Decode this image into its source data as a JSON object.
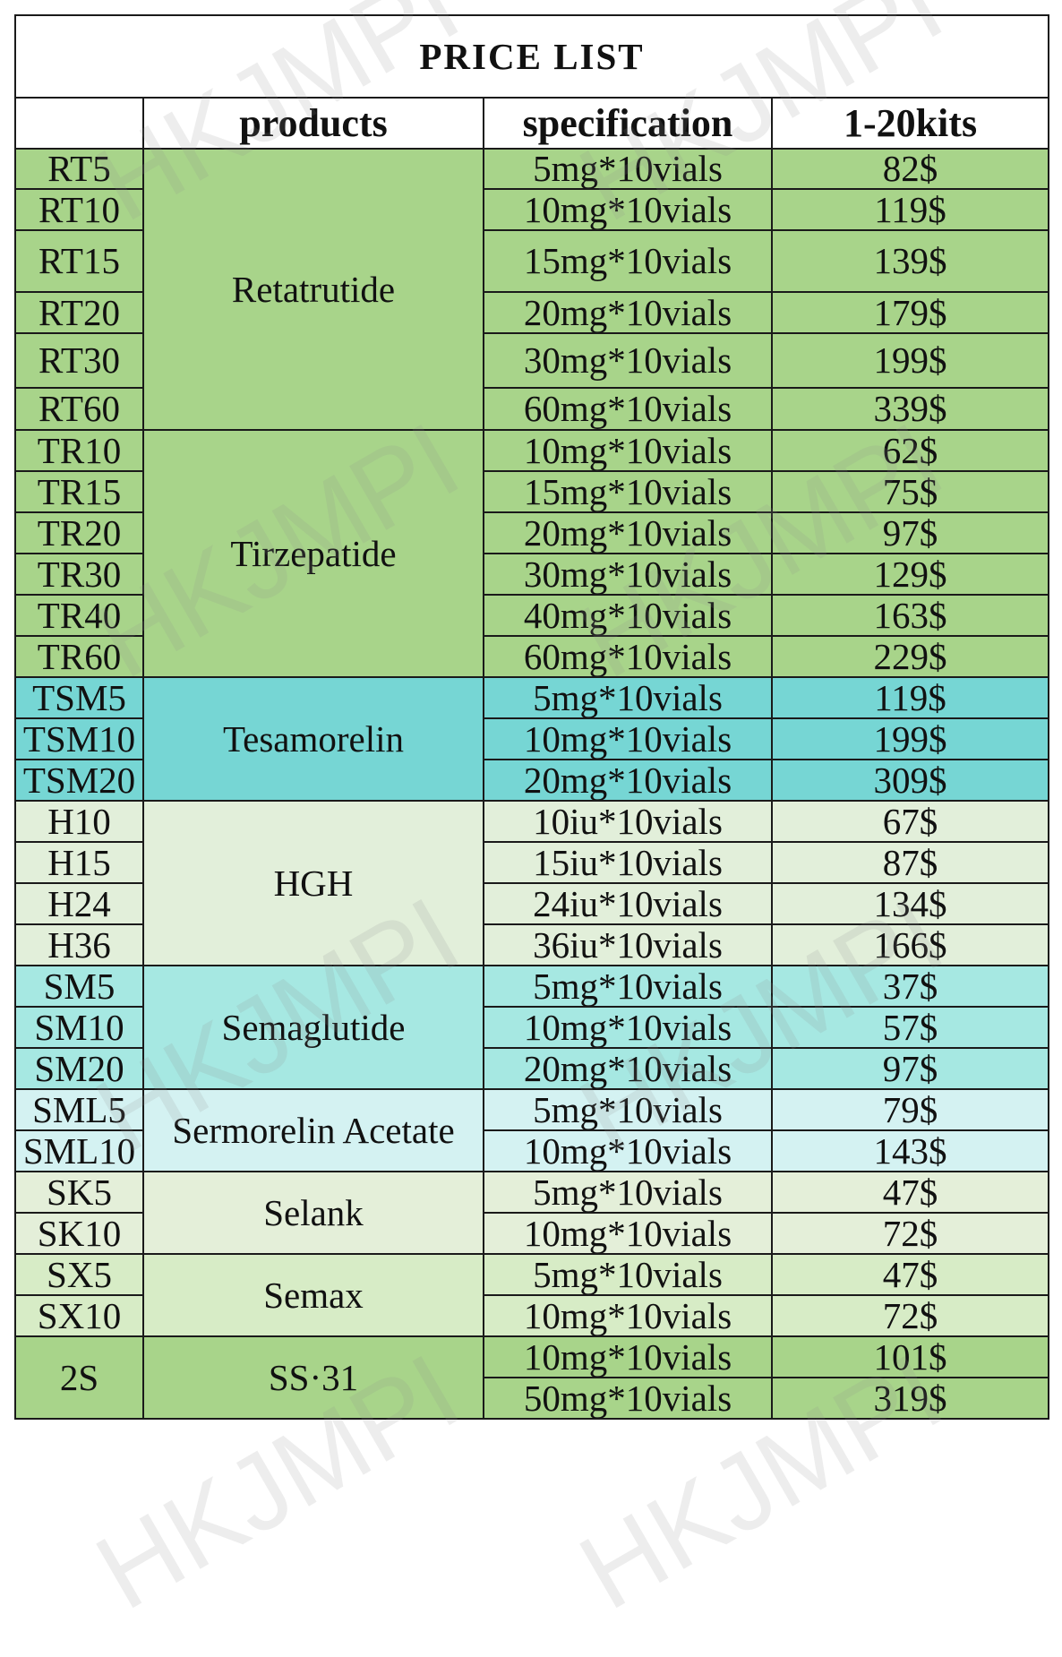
{
  "title": "PRICE  LIST",
  "columns": [
    "",
    "products",
    "specification",
    "1-20kits"
  ],
  "groups": [
    {
      "product": "Retatrutide",
      "color": "#a8d48a",
      "rows": [
        {
          "code": "RT5",
          "spec": "5mg*10vials",
          "price": "82$"
        },
        {
          "code": "RT10",
          "spec": "10mg*10vials",
          "price": "119$"
        },
        {
          "code": "RT15",
          "spec": "15mg*10vials",
          "price": "139$"
        },
        {
          "code": "RT20",
          "spec": "20mg*10vials",
          "price": "179$"
        },
        {
          "code": "RT30",
          "spec": "30mg*10vials",
          "price": "199$"
        },
        {
          "code": "RT60",
          "spec": "60mg*10vials",
          "price": "339$"
        }
      ]
    },
    {
      "product": "Tirzepatide",
      "color": "#a8d48a",
      "rows": [
        {
          "code": "TR10",
          "spec": "10mg*10vials",
          "price": "62$"
        },
        {
          "code": "TR15",
          "spec": "15mg*10vials",
          "price": "75$"
        },
        {
          "code": "TR20",
          "spec": "20mg*10vials",
          "price": "97$"
        },
        {
          "code": "TR30",
          "spec": "30mg*10vials",
          "price": "129$"
        },
        {
          "code": "TR40",
          "spec": "40mg*10vials",
          "price": "163$"
        },
        {
          "code": "TR60",
          "spec": "60mg*10vials",
          "price": "229$"
        }
      ]
    },
    {
      "product": "Tesamorelin",
      "color": "#76d6d4",
      "rows": [
        {
          "code": "TSM5",
          "spec": "5mg*10vials",
          "price": "119$"
        },
        {
          "code": "TSM10",
          "spec": "10mg*10vials",
          "price": "199$"
        },
        {
          "code": "TSM20",
          "spec": "20mg*10vials",
          "price": "309$"
        }
      ]
    },
    {
      "product": "HGH",
      "color": "#e2efda",
      "rows": [
        {
          "code": "H10",
          "spec": "10iu*10vials",
          "price": "67$"
        },
        {
          "code": "H15",
          "spec": "15iu*10vials",
          "price": "87$"
        },
        {
          "code": "H24",
          "spec": "24iu*10vials",
          "price": "134$"
        },
        {
          "code": "H36",
          "spec": "36iu*10vials",
          "price": "166$"
        }
      ]
    },
    {
      "product": "Semaglutide",
      "color": "#a6e8e2",
      "rows": [
        {
          "code": "SM5",
          "spec": "5mg*10vials",
          "price": "37$"
        },
        {
          "code": "SM10",
          "spec": "10mg*10vials",
          "price": "57$"
        },
        {
          "code": "SM20",
          "spec": "20mg*10vials",
          "price": "97$"
        }
      ]
    },
    {
      "product": "Sermorelin Acetate",
      "color": "#d4f2f2",
      "rows": [
        {
          "code": "SML5",
          "spec": "5mg*10vials",
          "price": "79$"
        },
        {
          "code": "SML10",
          "spec": "10mg*10vials",
          "price": "143$"
        }
      ]
    },
    {
      "product": "Selank",
      "color": "#e4efd9",
      "rows": [
        {
          "code": "SK5",
          "spec": "5mg*10vials",
          "price": "47$"
        },
        {
          "code": "SK10",
          "spec": "10mg*10vials",
          "price": "72$"
        }
      ]
    },
    {
      "product": "Semax",
      "color": "#d7ecc6",
      "rows": [
        {
          "code": "SX5",
          "spec": "5mg*10vials",
          "price": "47$"
        },
        {
          "code": "SX10",
          "spec": "10mg*10vials",
          "price": "72$"
        }
      ]
    },
    {
      "product": "SS·31",
      "code": "2S",
      "color": "#a8d48a",
      "rows": [
        {
          "spec": "10mg*10vials",
          "price": "101$"
        },
        {
          "spec": "50mg*10vials",
          "price": "319$"
        }
      ]
    }
  ],
  "watermark": "HKJMPI"
}
